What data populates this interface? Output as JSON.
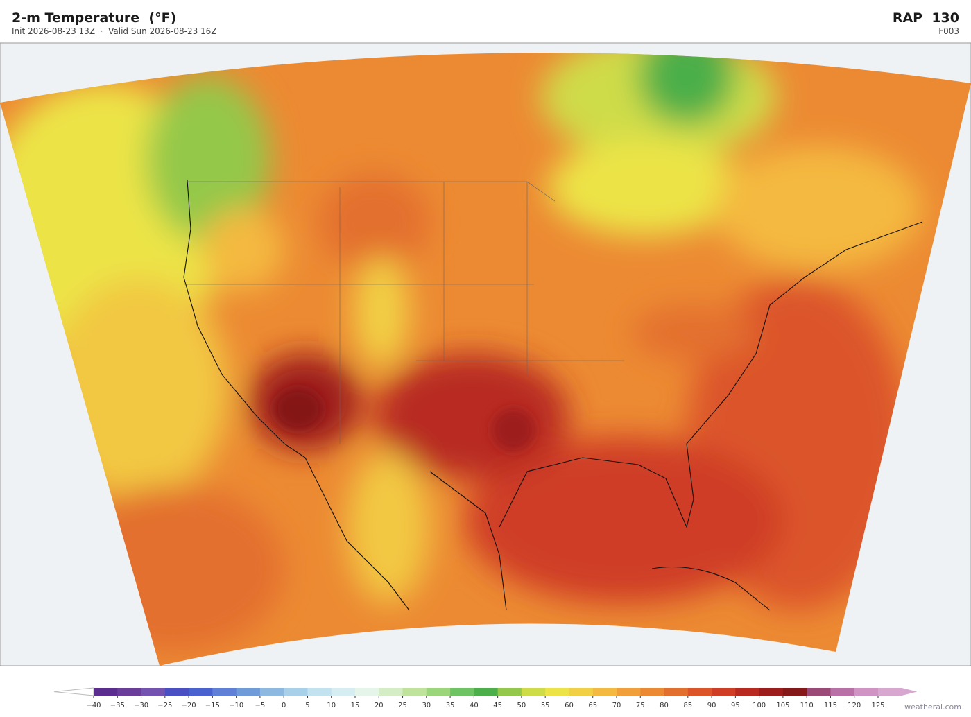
{
  "header": {
    "title": "2-m Temperature  (°F)",
    "subtitle": "Init 2026-08-23 13Z  ·  Valid Sun 2026-08-23 16Z",
    "model": "RAP  130",
    "forecast_hour": "F003"
  },
  "colorbar": {
    "ticks": [
      {
        "value": -40,
        "label": "−40"
      },
      {
        "value": -35,
        "label": "−35"
      },
      {
        "value": -30,
        "label": "−30"
      },
      {
        "value": -25,
        "label": "−25"
      },
      {
        "value": -20,
        "label": "−20"
      },
      {
        "value": -15,
        "label": "−15"
      },
      {
        "value": -10,
        "label": "−10"
      },
      {
        "value": -5,
        "label": "−5"
      },
      0,
      5,
      10,
      15,
      20,
      25,
      30,
      35,
      40,
      45,
      50,
      55,
      60,
      65,
      70,
      75,
      80,
      85,
      90,
      95,
      100,
      105,
      110,
      115,
      120,
      125
    ],
    "colors": [
      "#5b2d8e",
      "#6a3d9a",
      "#7452b0",
      "#4b4fc4",
      "#4a62d0",
      "#5f80d6",
      "#6f9bd9",
      "#8db8e0",
      "#a8d0e8",
      "#c2e2f0",
      "#d6eef2",
      "#e6f5ea",
      "#d4edc4",
      "#bfe39a",
      "#9bd67a",
      "#6ec462",
      "#4caf49",
      "#94c84a",
      "#cfdc4a",
      "#ece446",
      "#f2d045",
      "#f4b941",
      "#f19f3b",
      "#ec8a33",
      "#e36f2e",
      "#dc5529",
      "#cf3d25",
      "#b82920",
      "#9d1c1c",
      "#851818",
      "#9b4a78",
      "#b870a6",
      "#cf93c4",
      "#d8a7d0"
    ]
  },
  "watermark": "weatherai.com"
}
